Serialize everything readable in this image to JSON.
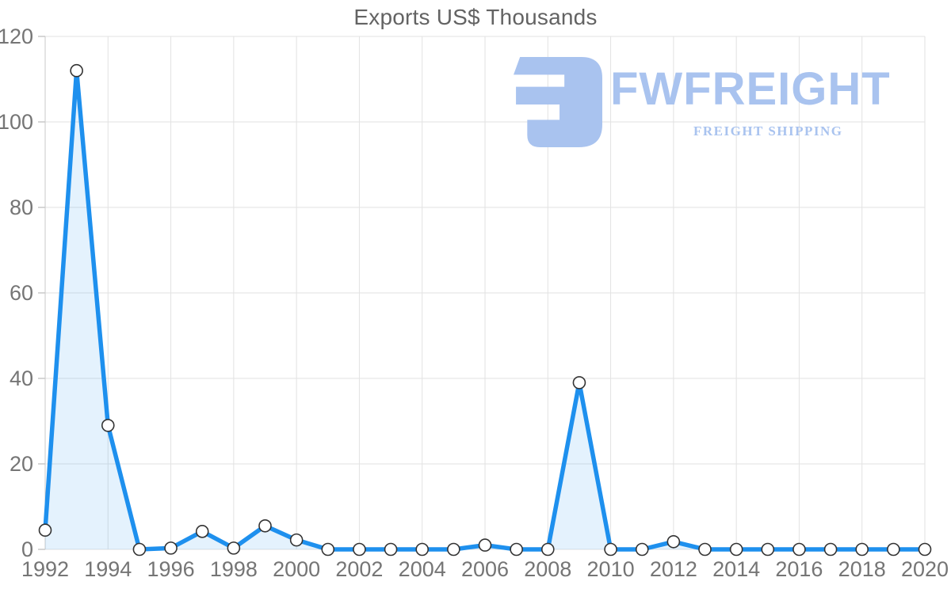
{
  "logo": {
    "brand": "FWFREIGHT",
    "tagline": "FREIGHT SHIPPING",
    "color": "#a9c3ef"
  },
  "colors": {
    "line": "#1e90ee",
    "area_fill": "rgba(33,144,238,0.12)",
    "grid": "#e2e2e2",
    "axis": "#c9c9c9",
    "tick_label": "#757575",
    "title": "#636363",
    "marker_fill": "#ffffff",
    "marker_stroke": "#333333"
  },
  "chart_data": {
    "type": "area",
    "title": "Exports US$ Thousands",
    "xlabel": "",
    "ylabel": "",
    "x": [
      1992,
      1993,
      1994,
      1995,
      1996,
      1997,
      1998,
      1999,
      2000,
      2001,
      2002,
      2003,
      2004,
      2005,
      2006,
      2007,
      2008,
      2009,
      2010,
      2011,
      2012,
      2013,
      2014,
      2015,
      2016,
      2017,
      2018,
      2019,
      2020
    ],
    "series": [
      {
        "name": "Exports US$ Thousands",
        "values": [
          4.5,
          112,
          29,
          0,
          0.3,
          4.2,
          0.3,
          5.5,
          2.2,
          0,
          0,
          0,
          0,
          0,
          1,
          0,
          0,
          39,
          0,
          0,
          1.8,
          0,
          0,
          0,
          0,
          0,
          0,
          0,
          0
        ]
      }
    ],
    "ylim": [
      0,
      120
    ],
    "yticks": [
      0,
      20,
      40,
      60,
      80,
      100,
      120
    ],
    "xticks": [
      1992,
      1994,
      1996,
      1998,
      2000,
      2002,
      2004,
      2006,
      2008,
      2010,
      2012,
      2014,
      2016,
      2018,
      2020
    ],
    "grid": true,
    "legend_position": "none",
    "marker": "circle"
  }
}
